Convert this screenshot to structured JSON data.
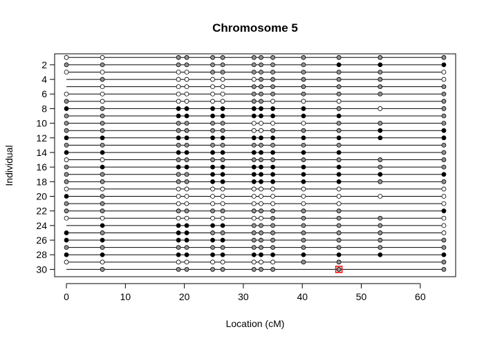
{
  "chart_data": {
    "type": "genotype-plot",
    "title": "Chromosome 5",
    "xlabel": "Location (cM)",
    "ylabel": "Individual",
    "xlim": [
      -2,
      66
    ],
    "ylim": [
      0.5,
      31
    ],
    "xticks": [
      0,
      10,
      20,
      30,
      40,
      50,
      60
    ],
    "yticks": [
      2,
      4,
      6,
      8,
      10,
      12,
      14,
      16,
      18,
      20,
      22,
      24,
      26,
      28,
      30
    ],
    "legend": "none",
    "colors": {
      "W": "#ffffff",
      "G": "#909090",
      "B": "#000000",
      "highlight": "#ff0000",
      "line": "#000000"
    },
    "markers": [
      0.0,
      6.1,
      19.0,
      20.4,
      24.8,
      26.5,
      31.8,
      33.0,
      35.0,
      40.2,
      46.2,
      53.2,
      64.0
    ],
    "genotypes": [
      "WWGGGGGGGGGGG",
      "GGGGGGGGGGBBB",
      "WWWWGGGGGGGGW",
      "-GWWWWWGGGGGW",
      "-WWWWWGGGGGGG",
      "WWWWWWGGGGGGG",
      "GWWWWWGGWWW-G",
      "BGBBBBBBBBGWG",
      "GGBBBBBBBBB-G",
      "GGGGGGWWWWGGG",
      "GGGGGGWWGGGBB",
      "BBBBBBBBBBBBB",
      "GGGGGGGGGGG-G",
      "BBBBBBBBBBB-G",
      "WWGGGGGGGGGGG",
      "GBBBBBBBBBBGG",
      "GGGGBBBBBBBBB",
      "GGGGBBBBBBBGG",
      "WWWWWWWWWWW-W",
      "BGWWWWWWWWWWW",
      "GGWWWWWWWWW-W",
      "GGGGGGGGGGG-B",
      "WWWWWWWWGGGGW",
      "-BBBBBGGGGGGW",
      "BGBBGGGGGGGGW",
      "BBBBBBGGGGGGG",
      "GGGGGGGGGGGGG",
      "BBBBBBBBBBBBB",
      "WWWWWWWWWGG-G",
      "-GGGGGGGG-G-G"
    ],
    "highlight": {
      "individual": 30,
      "location": 46.2
    }
  }
}
